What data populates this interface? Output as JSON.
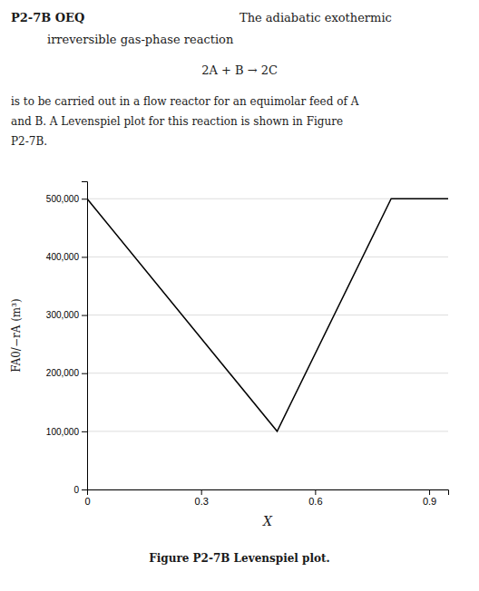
{
  "chart_data": {
    "type": "line",
    "title": "P2-7B OEQ",
    "annotations": [
      "The adiabatic exothermic",
      "irreversible gas-phase reaction",
      "2A + B → 2C",
      "is to be carried out in a flow reactor for an equimolar feed of A",
      "and B. A Levenspiel plot for this reaction is shown in Figure",
      "P2-7B.",
      "Figure P2-7B Levenspiel plot."
    ],
    "xlabel": "X",
    "ylabel": "FA0/−rA (m³)",
    "x": [
      0.0,
      0.5,
      0.8,
      0.95
    ],
    "values": [
      500000,
      100000,
      500000,
      500000
    ],
    "color": "#000000",
    "xlim": [
      0,
      0.95
    ],
    "ylim": [
      0,
      530000
    ],
    "xticks": [
      0,
      0.3,
      0.6,
      0.9
    ],
    "yticks": [
      0,
      {
        "value": 100000,
        "label": "100,000"
      },
      {
        "value": 200000,
        "label": "200,000"
      },
      {
        "value": 300000,
        "label": "300,000"
      },
      {
        "value": 400000,
        "label": "400,000"
      },
      {
        "value": 500000,
        "label": "500,000"
      }
    ],
    "grid": true
  }
}
